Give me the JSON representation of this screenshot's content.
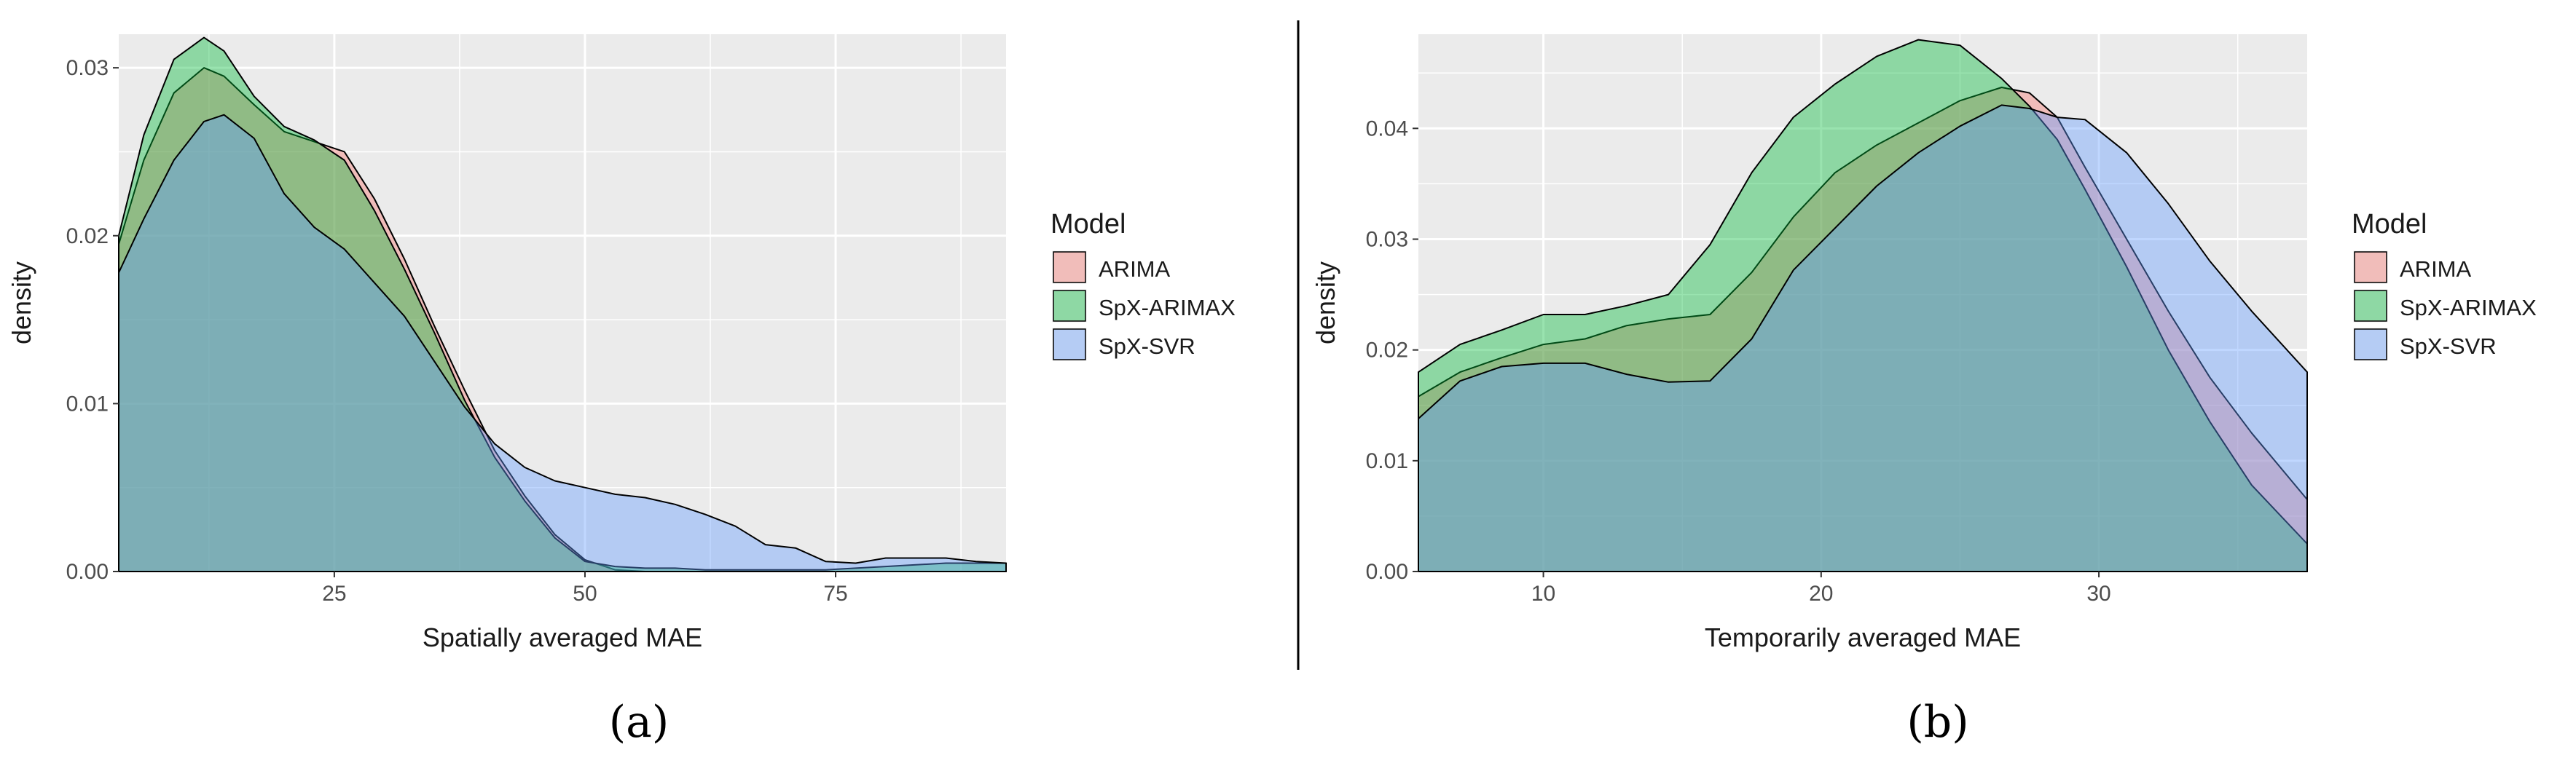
{
  "figure": {
    "caption_a": "(a)",
    "caption_b": "(b)"
  },
  "legend": {
    "title": "Model",
    "items": [
      {
        "label": "ARIMA",
        "color": "#F8766D"
      },
      {
        "label": "SpX-ARIMAX",
        "color": "#00BA38"
      },
      {
        "label": "SpX-SVR",
        "color": "#619CFF"
      }
    ]
  },
  "chart_data": [
    {
      "type": "area",
      "panel": "a",
      "title": "",
      "xlabel": "Spatially averaged MAE",
      "ylabel": "density",
      "xlim": [
        3.5,
        92
      ],
      "ylim": [
        0,
        0.032
      ],
      "xticks": [
        25,
        50,
        75
      ],
      "yticks": [
        0,
        0.01,
        0.02,
        0.03
      ],
      "ytick_labels": [
        "0.00",
        "0.01",
        "0.02",
        "0.03"
      ],
      "x": [
        3.5,
        6,
        9,
        12,
        14,
        17,
        20,
        23,
        26,
        29,
        32,
        35,
        38,
        41,
        44,
        47,
        50,
        53,
        56,
        59,
        62,
        65,
        68,
        71,
        74,
        77,
        80,
        83,
        86,
        89,
        92
      ],
      "series": [
        {
          "name": "ARIMA",
          "color": "#F8766D",
          "values": [
            0.0195,
            0.0245,
            0.0285,
            0.03,
            0.0295,
            0.0278,
            0.0262,
            0.0256,
            0.025,
            0.0222,
            0.0186,
            0.0146,
            0.0108,
            0.0072,
            0.0045,
            0.0022,
            0.0007,
            0.0001,
            0,
            0,
            0,
            0,
            0,
            0,
            0,
            0,
            0,
            0,
            0,
            0,
            0
          ]
        },
        {
          "name": "SpX-ARIMAX",
          "color": "#00BA38",
          "values": [
            0.02,
            0.026,
            0.0305,
            0.0318,
            0.031,
            0.0283,
            0.0265,
            0.0257,
            0.0245,
            0.0215,
            0.018,
            0.0142,
            0.0102,
            0.0068,
            0.0042,
            0.002,
            0.0006,
            0.0003,
            0.0002,
            0.0002,
            0.0001,
            0.0001,
            0.0001,
            0.0001,
            0.0001,
            0.0002,
            0.0003,
            0.0004,
            0.0005,
            0.0005,
            0.0005
          ]
        },
        {
          "name": "SpX-SVR",
          "color": "#619CFF",
          "values": [
            0.0178,
            0.021,
            0.0245,
            0.0268,
            0.0272,
            0.0258,
            0.0225,
            0.0205,
            0.0192,
            0.0172,
            0.0152,
            0.0125,
            0.0098,
            0.0076,
            0.0062,
            0.0054,
            0.005,
            0.0046,
            0.0044,
            0.004,
            0.0034,
            0.0027,
            0.0016,
            0.0014,
            0.0006,
            0.0005,
            0.0008,
            0.0008,
            0.0008,
            0.0006,
            0.0005
          ]
        }
      ]
    },
    {
      "type": "area",
      "panel": "b",
      "title": "",
      "xlabel": "Temporarily averaged MAE",
      "ylabel": "density",
      "xlim": [
        5.5,
        37.5
      ],
      "ylim": [
        0,
        0.0485
      ],
      "xticks": [
        10,
        20,
        30
      ],
      "yticks": [
        0,
        0.01,
        0.02,
        0.03,
        0.04
      ],
      "ytick_labels": [
        "0.00",
        "0.01",
        "0.02",
        "0.03",
        "0.04"
      ],
      "x": [
        5.5,
        7,
        8.5,
        10,
        11.5,
        13,
        14.5,
        16,
        17.5,
        19,
        20.5,
        22,
        23.5,
        25,
        26.5,
        27.5,
        28.5,
        29.5,
        31,
        32.5,
        34,
        35.5,
        37.5
      ],
      "series": [
        {
          "name": "ARIMA",
          "color": "#F8766D",
          "values": [
            0.0158,
            0.018,
            0.0193,
            0.0205,
            0.021,
            0.0222,
            0.0228,
            0.0232,
            0.027,
            0.032,
            0.036,
            0.0385,
            0.0405,
            0.0425,
            0.0437,
            0.0432,
            0.041,
            0.0365,
            0.03,
            0.0235,
            0.0175,
            0.0125,
            0.0065
          ]
        },
        {
          "name": "SpX-ARIMAX",
          "color": "#00BA38",
          "values": [
            0.018,
            0.0205,
            0.0218,
            0.0232,
            0.0232,
            0.024,
            0.025,
            0.0295,
            0.036,
            0.041,
            0.044,
            0.0465,
            0.048,
            0.0475,
            0.0445,
            0.042,
            0.039,
            0.0345,
            0.0275,
            0.02,
            0.0135,
            0.0078,
            0.0025
          ]
        },
        {
          "name": "SpX-SVR",
          "color": "#619CFF",
          "values": [
            0.0138,
            0.0172,
            0.0185,
            0.0188,
            0.0188,
            0.0178,
            0.0171,
            0.0172,
            0.021,
            0.0272,
            0.031,
            0.0348,
            0.0378,
            0.0402,
            0.0421,
            0.0418,
            0.041,
            0.0408,
            0.0378,
            0.0332,
            0.028,
            0.0235,
            0.018
          ]
        }
      ]
    }
  ]
}
